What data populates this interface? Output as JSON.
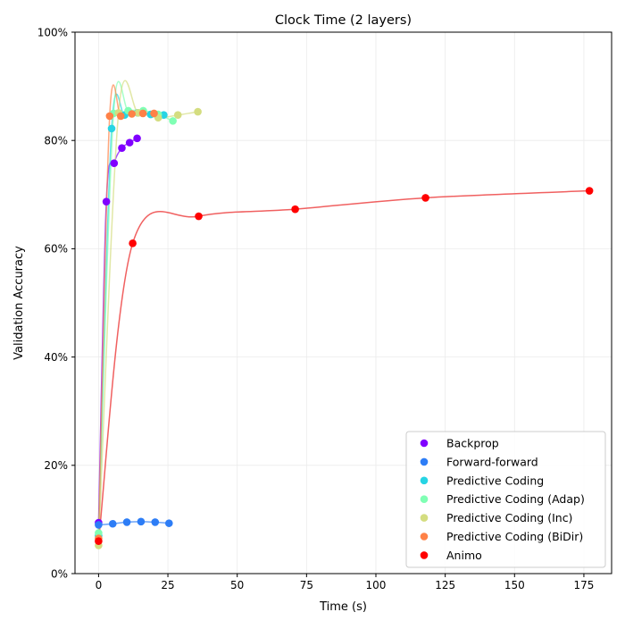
{
  "chart_data": {
    "type": "scatter",
    "title": "Clock Time (2 layers)",
    "xlabel": "Time (s)",
    "ylabel": "Validation Accuracy",
    "xlim": [
      -8.5,
      185
    ],
    "ylim": [
      0,
      1
    ],
    "xticks": [
      0,
      25,
      50,
      75,
      100,
      125,
      150,
      175
    ],
    "xtick_labels": [
      "0",
      "25",
      "50",
      "75",
      "100",
      "125",
      "150",
      "175"
    ],
    "yticks": [
      0,
      0.2,
      0.4,
      0.6,
      0.8,
      1.0
    ],
    "ytick_labels": [
      "0%",
      "20%",
      "40%",
      "60%",
      "80%",
      "100%"
    ],
    "grid": true,
    "legend_position": "lower-right",
    "series": [
      {
        "name": "Backprop",
        "color": "#8000ff",
        "x": [
          0.0,
          2.8,
          5.6,
          8.4,
          11.2,
          13.9
        ],
        "y": [
          0.094,
          0.687,
          0.758,
          0.786,
          0.796,
          0.804
        ]
      },
      {
        "name": "Forward-forward",
        "color": "#2d7df6",
        "x": [
          0.0,
          5.1,
          10.2,
          15.3,
          20.4,
          25.4
        ],
        "y": [
          0.09,
          0.092,
          0.095,
          0.096,
          0.095,
          0.093
        ]
      },
      {
        "name": "Predictive Coding",
        "color": "#26d4e4",
        "x": [
          0.0,
          4.7,
          9.4,
          14.1,
          18.8,
          23.5
        ],
        "y": [
          0.07,
          0.822,
          0.847,
          0.851,
          0.848,
          0.847
        ]
      },
      {
        "name": "Predictive Coding (Adap)",
        "color": "#80ffb4",
        "x": [
          0.0,
          5.4,
          10.7,
          16.1,
          21.5,
          26.8
        ],
        "y": [
          0.075,
          0.85,
          0.855,
          0.855,
          0.848,
          0.836
        ]
      },
      {
        "name": "Predictive Coding (Inc)",
        "color": "#d4dd80",
        "x": [
          0.0,
          7.2,
          14.3,
          21.5,
          28.6,
          35.8
        ],
        "y": [
          0.052,
          0.851,
          0.851,
          0.842,
          0.847,
          0.853
        ]
      },
      {
        "name": "Predictive Coding (BiDir)",
        "color": "#ff8147",
        "x": [
          0.0,
          4.0,
          8.0,
          12.0,
          16.0,
          20.0
        ],
        "y": [
          0.065,
          0.845,
          0.845,
          0.849,
          0.85,
          0.85
        ]
      },
      {
        "name": "Animo",
        "color": "#ff0000",
        "line_color": "#f06060",
        "x": [
          0.0,
          12.3,
          36.1,
          70.9,
          117.9,
          177.0
        ],
        "y": [
          0.06,
          0.61,
          0.66,
          0.673,
          0.694,
          0.707
        ]
      }
    ]
  }
}
